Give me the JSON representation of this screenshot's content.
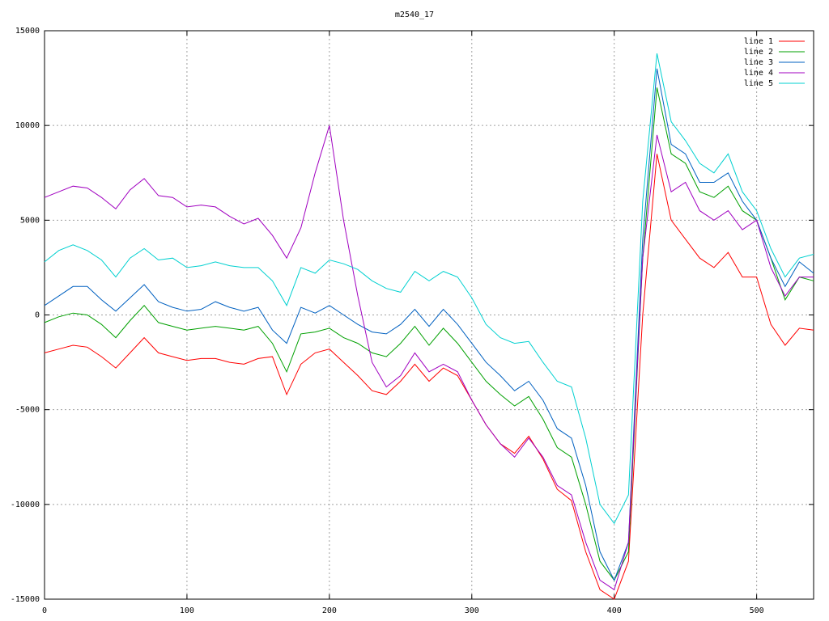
{
  "chart_data": {
    "type": "line",
    "title": "m2540_17",
    "x": [
      0,
      10,
      20,
      30,
      40,
      50,
      60,
      70,
      80,
      90,
      100,
      110,
      120,
      130,
      140,
      150,
      160,
      170,
      180,
      190,
      200,
      210,
      220,
      230,
      240,
      250,
      260,
      270,
      280,
      290,
      300,
      310,
      320,
      330,
      340,
      350,
      360,
      370,
      380,
      390,
      400,
      410,
      420,
      430,
      440,
      450,
      460,
      470,
      480,
      490,
      500,
      510,
      520,
      530,
      540
    ],
    "series": [
      {
        "name": "line 1",
        "color": "#ff0000",
        "values": [
          -2000,
          -1800,
          -1600,
          -1700,
          -2200,
          -2800,
          -2000,
          -1200,
          -2000,
          -2200,
          -2400,
          -2300,
          -2300,
          -2500,
          -2600,
          -2300,
          -2200,
          -4200,
          -2600,
          -2000,
          -1800,
          -2500,
          -3200,
          -4000,
          -4200,
          -3500,
          -2600,
          -3500,
          -2800,
          -3200,
          -4500,
          -5800,
          -6800,
          -7300,
          -6400,
          -7600,
          -9200,
          -9800,
          -12500,
          -14500,
          -15000,
          -13000,
          0,
          8500,
          5000,
          4000,
          3000,
          2500,
          3300,
          2000,
          2000,
          -500,
          -1600,
          -700,
          -800
        ]
      },
      {
        "name": "line 2",
        "color": "#00a000",
        "values": [
          -400,
          -100,
          100,
          0,
          -500,
          -1200,
          -300,
          500,
          -400,
          -600,
          -800,
          -700,
          -600,
          -700,
          -800,
          -600,
          -1500,
          -3000,
          -1000,
          -900,
          -700,
          -1200,
          -1500,
          -2000,
          -2200,
          -1500,
          -600,
          -1600,
          -700,
          -1500,
          -2500,
          -3500,
          -4200,
          -4800,
          -4300,
          -5500,
          -7000,
          -7500,
          -10000,
          -13000,
          -14000,
          -12500,
          3000,
          12000,
          8500,
          8000,
          6500,
          6200,
          6800,
          5500,
          5000,
          3000,
          800,
          2000,
          1800
        ]
      },
      {
        "name": "line 3",
        "color": "#0060c0",
        "values": [
          500,
          1000,
          1500,
          1500,
          800,
          200,
          900,
          1600,
          700,
          400,
          200,
          300,
          700,
          400,
          200,
          400,
          -800,
          -1500,
          400,
          100,
          500,
          0,
          -500,
          -900,
          -1000,
          -500,
          300,
          -600,
          300,
          -500,
          -1500,
          -2500,
          -3200,
          -4000,
          -3500,
          -4500,
          -6000,
          -6500,
          -9000,
          -12500,
          -14000,
          -12000,
          4000,
          13000,
          9000,
          8500,
          7000,
          7000,
          7500,
          6000,
          5000,
          3000,
          1500,
          2800,
          2200
        ]
      },
      {
        "name": "line 4",
        "color": "#a000c0",
        "values": [
          6200,
          6500,
          6800,
          6700,
          6200,
          5600,
          6600,
          7200,
          6300,
          6200,
          5700,
          5800,
          5700,
          5200,
          4800,
          5100,
          4200,
          3000,
          4600,
          7500,
          10000,
          5000,
          1000,
          -2500,
          -3800,
          -3200,
          -2000,
          -3000,
          -2600,
          -3000,
          -4500,
          -5800,
          -6800,
          -7500,
          -6500,
          -7500,
          -9000,
          -9500,
          -12000,
          -14000,
          -14500,
          -12000,
          3000,
          9500,
          6500,
          7000,
          5500,
          5000,
          5500,
          4500,
          5000,
          2500,
          1000,
          2000,
          2000
        ]
      },
      {
        "name": "line 5",
        "color": "#00d0d0",
        "values": [
          2800,
          3400,
          3700,
          3400,
          2900,
          2000,
          3000,
          3500,
          2900,
          3000,
          2500,
          2600,
          2800,
          2600,
          2500,
          2500,
          1800,
          500,
          2500,
          2200,
          2900,
          2700,
          2400,
          1800,
          1400,
          1200,
          2300,
          1800,
          2300,
          2000,
          900,
          -500,
          -1200,
          -1500,
          -1400,
          -2500,
          -3500,
          -3800,
          -6500,
          -10000,
          -11000,
          -9500,
          6000,
          13800,
          10200,
          9200,
          8000,
          7500,
          8500,
          6500,
          5500,
          3500,
          2000,
          3000,
          3200
        ]
      }
    ],
    "xlim": [
      0,
      540
    ],
    "xticks": [
      0,
      100,
      200,
      300,
      400,
      500
    ],
    "ylim": [
      -15000,
      15000
    ],
    "yticks": [
      -15000,
      -10000,
      -5000,
      0,
      5000,
      10000,
      15000
    ],
    "grid": true,
    "legend": "top-right"
  }
}
